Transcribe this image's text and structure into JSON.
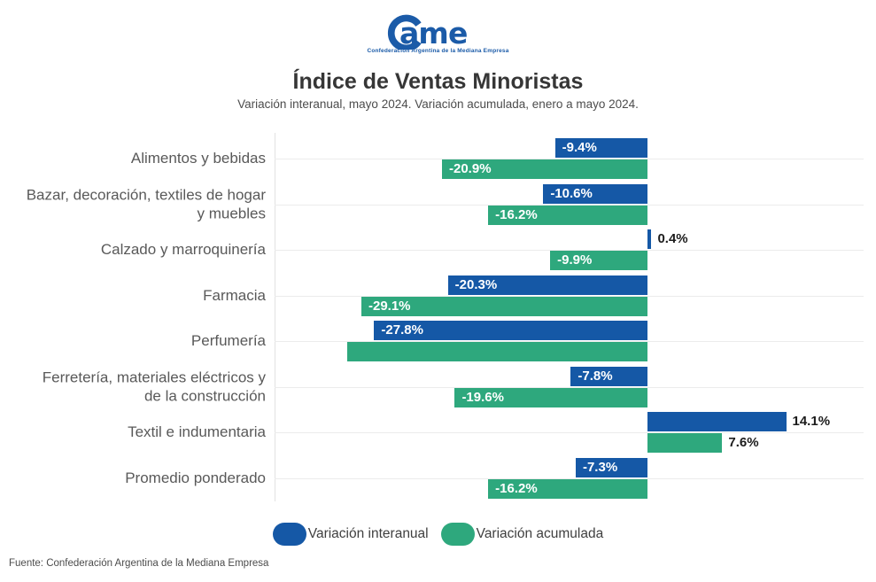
{
  "logo": {
    "name": "CAME",
    "caption": "Confederación Argentina de la Mediana Empresa",
    "color": "#1b5ba8"
  },
  "header": {
    "title": "Índice de Ventas Minoristas",
    "subtitle": "Variación interanual, mayo 2024. Variación acumulada, enero a mayo 2024."
  },
  "chart_data": {
    "type": "bar",
    "orientation": "horizontal",
    "title": "Índice de Ventas Minoristas",
    "subtitle": "Variación interanual, mayo 2024. Variación acumulada, enero a mayo 2024.",
    "grid": true,
    "legend_position": "bottom",
    "xlim": [
      -38,
      22
    ],
    "unit": "%",
    "categories": [
      [
        "Alimentos y bebidas"
      ],
      [
        "Bazar, decoración, textiles de hogar",
        "y muebles"
      ],
      [
        "Calzado y marroquinería"
      ],
      [
        "Farmacia"
      ],
      [
        "Perfumería"
      ],
      [
        "Ferretería, materiales eléctricos y",
        "de la construcción"
      ],
      [
        "Textil e indumentaria"
      ],
      [
        "Promedio ponderado"
      ]
    ],
    "series": [
      {
        "key": "interanual",
        "name": "Variación interanual",
        "color": "#1558a6",
        "values": [
          -9.4,
          -10.6,
          0.4,
          -20.3,
          -27.8,
          -7.8,
          14.1,
          -7.3
        ],
        "labels": [
          "-9.4%",
          "-10.6%",
          "0.4%",
          "-20.3%",
          "-27.8%",
          "-7.8%",
          "14.1%",
          "-7.3%"
        ]
      },
      {
        "key": "acumulada",
        "name": "Variación acumulada",
        "color": "#2ea87d",
        "values": [
          -20.9,
          -16.2,
          -9.9,
          -29.1,
          -30.5,
          -19.6,
          7.6,
          -16.2
        ],
        "labels": [
          "-20.9%",
          "-16.2%",
          "-9.9%",
          "-29.1%",
          "",
          "-19.6%",
          "7.6%",
          "-16.2%"
        ]
      }
    ]
  },
  "legend": {
    "items": [
      {
        "label": "Variación interanual",
        "color": "#1558a6"
      },
      {
        "label": "Variación acumulada",
        "color": "#2ea87d"
      }
    ]
  },
  "footer": {
    "source": "Fuente: Confederación Argentina de la Mediana Empresa"
  }
}
